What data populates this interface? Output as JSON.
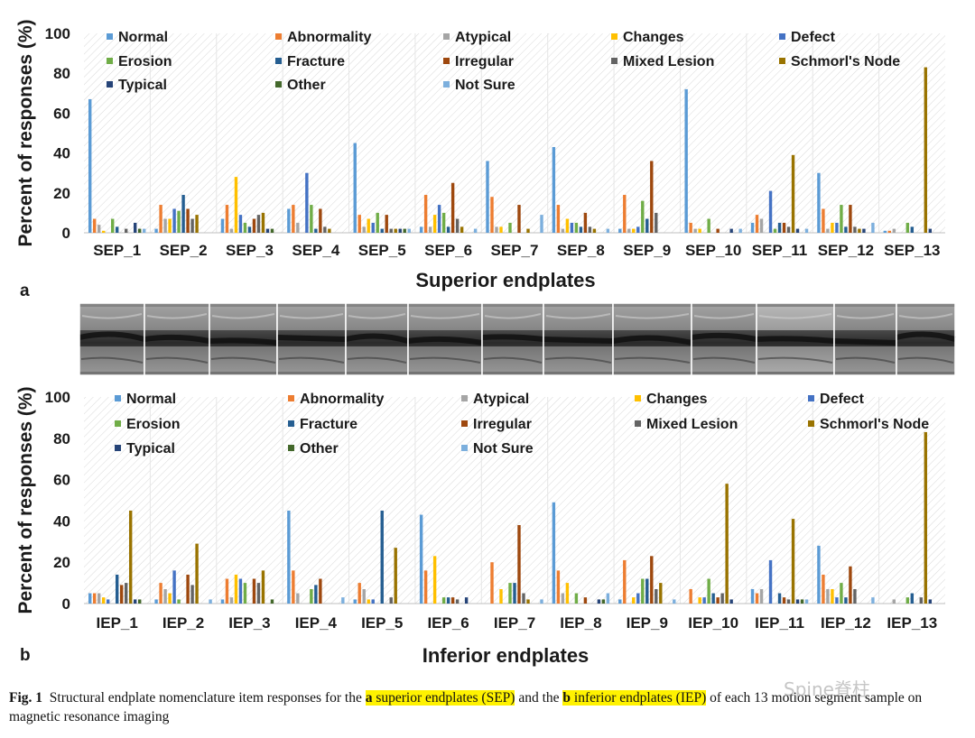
{
  "legend_colors": {
    "Normal": "#5b9bd5",
    "Abnormality": "#ed7d31",
    "Atypical": "#a5a5a5",
    "Changes": "#ffc000",
    "Defect": "#4472c4",
    "Erosion": "#70ad47",
    "Fracture": "#255e91",
    "Irregular": "#9e480e",
    "Mixed Lesion": "#636363",
    "Schmorl's Node": "#997300",
    "Typical": "#264478",
    "Other": "#43682b",
    "Not Sure": "#7cafdd"
  },
  "chart_data": [
    {
      "type": "bar",
      "panel_label": "a",
      "xlabel": "Superior endplates",
      "ylabel": "Percent of responses (%)",
      "ylim": [
        0,
        100
      ],
      "yticks": [
        0,
        20,
        40,
        60,
        80,
        100
      ],
      "grid": false,
      "legend_position": "top",
      "categories": [
        "SEP_1",
        "SEP_2",
        "SEP_3",
        "SEP_4",
        "SEP_5",
        "SEP_6",
        "SEP_7",
        "SEP_8",
        "SEP_9",
        "SEP_10",
        "SEP_11",
        "SEP_12",
        "SEP_13"
      ],
      "series": [
        {
          "name": "Normal",
          "values": [
            67,
            2,
            7,
            12,
            45,
            3,
            36,
            43,
            2,
            72,
            5,
            30,
            1
          ]
        },
        {
          "name": "Abnormality",
          "values": [
            7,
            14,
            14,
            14,
            9,
            19,
            18,
            14,
            19,
            5,
            9,
            12,
            1
          ]
        },
        {
          "name": "Atypical",
          "values": [
            4,
            7,
            2,
            5,
            3,
            3,
            3,
            2,
            2,
            2,
            7,
            2,
            2
          ]
        },
        {
          "name": "Changes",
          "values": [
            1,
            7,
            28,
            0,
            7,
            9,
            3,
            7,
            2,
            2,
            0,
            5,
            0
          ]
        },
        {
          "name": "Defect",
          "values": [
            0,
            12,
            9,
            30,
            5,
            14,
            0,
            5,
            3,
            0,
            21,
            5,
            0
          ]
        },
        {
          "name": "Erosion",
          "values": [
            7,
            11,
            5,
            14,
            10,
            10,
            5,
            5,
            16,
            7,
            2,
            14,
            5
          ]
        },
        {
          "name": "Fracture",
          "values": [
            3,
            19,
            3,
            2,
            2,
            3,
            0,
            3,
            7,
            0,
            5,
            3,
            3
          ]
        },
        {
          "name": "Irregular",
          "values": [
            0,
            12,
            7,
            12,
            9,
            25,
            14,
            10,
            36,
            2,
            5,
            14,
            0
          ]
        },
        {
          "name": "Mixed Lesion",
          "values": [
            2,
            7,
            9,
            3,
            2,
            7,
            0,
            3,
            10,
            0,
            3,
            3,
            0
          ]
        },
        {
          "name": "Schmorl's Node",
          "values": [
            0,
            9,
            10,
            2,
            2,
            3,
            2,
            2,
            0,
            0,
            39,
            2,
            83
          ]
        },
        {
          "name": "Typical",
          "values": [
            5,
            0,
            2,
            0,
            2,
            0,
            0,
            0,
            0,
            2,
            2,
            2,
            2
          ]
        },
        {
          "name": "Other",
          "values": [
            2,
            0,
            2,
            0,
            2,
            0,
            0,
            0,
            0,
            0,
            0,
            0,
            0
          ]
        },
        {
          "name": "Not Sure",
          "values": [
            2,
            0,
            0,
            0,
            2,
            2,
            9,
            2,
            0,
            2,
            2,
            5,
            0
          ]
        }
      ]
    },
    {
      "type": "bar",
      "panel_label": "b",
      "xlabel": "Inferior endplates",
      "ylabel": "Percent of responses (%)",
      "ylim": [
        0,
        100
      ],
      "yticks": [
        0,
        20,
        40,
        60,
        80,
        100
      ],
      "grid": false,
      "legend_position": "top",
      "categories": [
        "IEP_1",
        "IEP_2",
        "IEP_3",
        "IEP_4",
        "IEP_5",
        "IEP_6",
        "IEP_7",
        "IEP_8",
        "IEP_9",
        "IEP_10",
        "IEP_11",
        "IEP_12",
        "IEP_13"
      ],
      "series": [
        {
          "name": "Normal",
          "values": [
            5,
            2,
            2,
            45,
            2,
            43,
            0,
            49,
            2,
            0,
            7,
            28,
            0
          ]
        },
        {
          "name": "Abnormality",
          "values": [
            5,
            10,
            12,
            16,
            10,
            16,
            20,
            16,
            21,
            7,
            5,
            14,
            0
          ]
        },
        {
          "name": "Atypical",
          "values": [
            5,
            7,
            3,
            5,
            7,
            0,
            0,
            5,
            0,
            0,
            7,
            7,
            2
          ]
        },
        {
          "name": "Changes",
          "values": [
            3,
            5,
            14,
            0,
            2,
            23,
            7,
            10,
            3,
            3,
            0,
            7,
            0
          ]
        },
        {
          "name": "Defect",
          "values": [
            2,
            16,
            12,
            0,
            2,
            0,
            0,
            0,
            5,
            3,
            21,
            3,
            0
          ]
        },
        {
          "name": "Erosion",
          "values": [
            0,
            2,
            10,
            7,
            0,
            3,
            10,
            5,
            12,
            12,
            0,
            10,
            3
          ]
        },
        {
          "name": "Fracture",
          "values": [
            14,
            0,
            0,
            9,
            45,
            3,
            10,
            0,
            12,
            5,
            5,
            3,
            5
          ]
        },
        {
          "name": "Irregular",
          "values": [
            9,
            14,
            12,
            12,
            0,
            3,
            38,
            3,
            23,
            3,
            3,
            18,
            0
          ]
        },
        {
          "name": "Mixed Lesion",
          "values": [
            10,
            9,
            10,
            0,
            3,
            2,
            5,
            0,
            7,
            5,
            2,
            7,
            3
          ]
        },
        {
          "name": "Schmorl's Node",
          "values": [
            45,
            29,
            16,
            0,
            27,
            0,
            2,
            0,
            10,
            58,
            41,
            0,
            83
          ]
        },
        {
          "name": "Typical",
          "values": [
            2,
            0,
            0,
            0,
            0,
            3,
            0,
            2,
            0,
            2,
            2,
            0,
            2
          ]
        },
        {
          "name": "Other",
          "values": [
            2,
            0,
            2,
            0,
            0,
            0,
            0,
            2,
            0,
            0,
            2,
            0,
            0
          ]
        },
        {
          "name": "Not Sure",
          "values": [
            0,
            2,
            0,
            3,
            0,
            0,
            2,
            5,
            2,
            0,
            2,
            3,
            0
          ]
        }
      ]
    }
  ],
  "caption": {
    "fig": "Fig. 1",
    "t1": "Structural endplate nomenclature item responses for the ",
    "a": "a",
    "sep": " superior endplates (SEP)",
    "t2": " and the ",
    "b": "b",
    "iep": " inferior endplates (IEP)",
    "t3": " of each 13 motion segment sample on magnetic resonance imaging"
  },
  "watermark": "Spine脊柱"
}
